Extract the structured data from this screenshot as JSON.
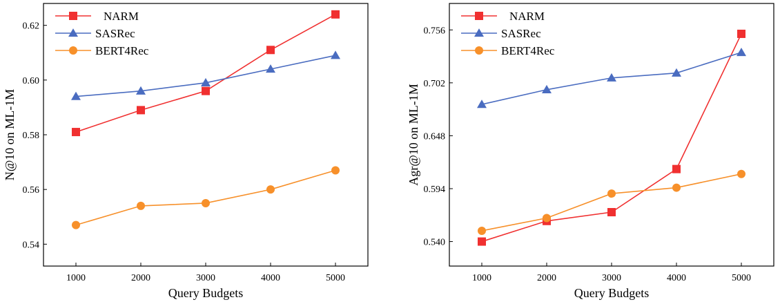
{
  "chart_data": [
    {
      "type": "line",
      "title": "",
      "xlabel": "Query Budgets",
      "ylabel": "N@10 on ML-1M",
      "x": [
        1000,
        2000,
        3000,
        4000,
        5000
      ],
      "xlim": [
        500,
        5500
      ],
      "ylim": [
        0.532,
        0.628
      ],
      "yticks": [
        0.54,
        0.56,
        0.58,
        0.6,
        0.62
      ],
      "ytick_labels": [
        "0.54",
        "0.56",
        "0.58",
        "0.60",
        "0.62"
      ],
      "xtick_labels": [
        "1000",
        "2000",
        "3000",
        "4000",
        "5000"
      ],
      "legend": "top-left",
      "grid": false,
      "series": [
        {
          "name": "NARM",
          "color": "#f03030",
          "marker": "square",
          "values": [
            0.581,
            0.589,
            0.596,
            0.611,
            0.624
          ]
        },
        {
          "name": "SASRec",
          "color": "#4a6cc0",
          "marker": "triangle",
          "values": [
            0.594,
            0.596,
            0.599,
            0.604,
            0.609
          ]
        },
        {
          "name": "BERT4Rec",
          "color": "#f7902a",
          "marker": "circle",
          "values": [
            0.547,
            0.554,
            0.555,
            0.56,
            0.567
          ]
        }
      ]
    },
    {
      "type": "line",
      "title": "",
      "xlabel": "Query Budgets",
      "ylabel": "Agr@10 on ML-1M",
      "x": [
        1000,
        2000,
        3000,
        4000,
        5000
      ],
      "xlim": [
        500,
        5500
      ],
      "ylim": [
        0.515,
        0.783
      ],
      "yticks": [
        0.54,
        0.594,
        0.648,
        0.702,
        0.756
      ],
      "ytick_labels": [
        "0.540",
        "0.594",
        "0.648",
        "0.702",
        "0.756"
      ],
      "xtick_labels": [
        "1000",
        "2000",
        "3000",
        "4000",
        "5000"
      ],
      "legend": "top-left",
      "grid": false,
      "series": [
        {
          "name": "NARM",
          "color": "#f03030",
          "marker": "square",
          "values": [
            0.54,
            0.561,
            0.57,
            0.614,
            0.752
          ]
        },
        {
          "name": "SASRec",
          "color": "#4a6cc0",
          "marker": "triangle",
          "values": [
            0.68,
            0.695,
            0.707,
            0.712,
            0.733
          ]
        },
        {
          "name": "BERT4Rec",
          "color": "#f7902a",
          "marker": "circle",
          "values": [
            0.551,
            0.564,
            0.589,
            0.595,
            0.609
          ]
        }
      ]
    }
  ]
}
